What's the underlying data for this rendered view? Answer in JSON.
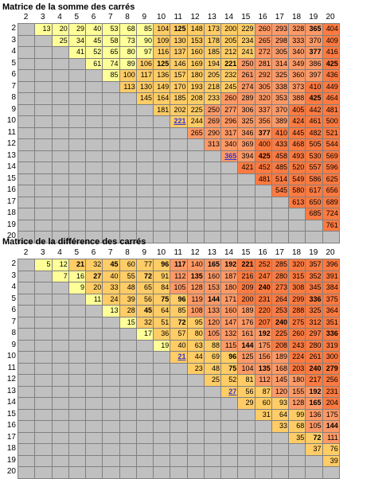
{
  "sum_matrix": {
    "title": "Matrice de la somme des carrés",
    "col_headers": [
      "2",
      "3",
      "4",
      "5",
      "6",
      "7",
      "8",
      "9",
      "10",
      "11",
      "12",
      "13",
      "14",
      "15",
      "16",
      "17",
      "18",
      "19",
      "20"
    ],
    "row_headers": [
      "2",
      "3",
      "4",
      "5",
      "6",
      "7",
      "8",
      "9",
      "10",
      "11",
      "12",
      "13",
      "14",
      "15",
      "16",
      "17",
      "18",
      "19",
      "20"
    ],
    "rows": [
      [
        "",
        "13",
        "20",
        "29",
        "40",
        "53",
        "68",
        "85",
        "104",
        "125",
        "148",
        "173",
        "200",
        "229",
        "260",
        "293",
        "328",
        "365",
        "404"
      ],
      [
        "",
        "",
        "25",
        "34",
        "45",
        "58",
        "73",
        "90",
        "109",
        "130",
        "153",
        "178",
        "205",
        "234",
        "265",
        "298",
        "333",
        "370",
        "409"
      ],
      [
        "",
        "",
        "",
        "41",
        "52",
        "65",
        "80",
        "97",
        "116",
        "137",
        "160",
        "185",
        "212",
        "241",
        "272",
        "305",
        "340",
        "377",
        "416"
      ],
      [
        "",
        "",
        "",
        "",
        "61",
        "74",
        "89",
        "106",
        "125",
        "146",
        "169",
        "194",
        "221",
        "250",
        "281",
        "314",
        "349",
        "386",
        "425"
      ],
      [
        "",
        "",
        "",
        "",
        "",
        "85",
        "100",
        "117",
        "136",
        "157",
        "180",
        "205",
        "232",
        "261",
        "292",
        "325",
        "360",
        "397",
        "436"
      ],
      [
        "",
        "",
        "",
        "",
        "",
        "",
        "113",
        "130",
        "149",
        "170",
        "193",
        "218",
        "245",
        "274",
        "305",
        "338",
        "373",
        "410",
        "449"
      ],
      [
        "",
        "",
        "",
        "",
        "",
        "",
        "",
        "145",
        "164",
        "185",
        "208",
        "233",
        "260",
        "289",
        "320",
        "353",
        "388",
        "425",
        "464"
      ],
      [
        "",
        "",
        "",
        "",
        "",
        "",
        "",
        "",
        "181",
        "202",
        "225",
        "250",
        "277",
        "306",
        "337",
        "370",
        "405",
        "442",
        "481"
      ],
      [
        "",
        "",
        "",
        "",
        "",
        "",
        "",
        "",
        "",
        "221",
        "244",
        "269",
        "296",
        "325",
        "356",
        "389",
        "424",
        "461",
        "500"
      ],
      [
        "",
        "",
        "",
        "",
        "",
        "",
        "",
        "",
        "",
        "",
        "265",
        "290",
        "317",
        "346",
        "377",
        "410",
        "445",
        "482",
        "521"
      ],
      [
        "",
        "",
        "",
        "",
        "",
        "",
        "",
        "",
        "",
        "",
        "",
        "313",
        "340",
        "369",
        "400",
        "433",
        "468",
        "505",
        "544"
      ],
      [
        "",
        "",
        "",
        "",
        "",
        "",
        "",
        "",
        "",
        "",
        "",
        "",
        "365",
        "394",
        "425",
        "458",
        "493",
        "530",
        "569"
      ],
      [
        "",
        "",
        "",
        "",
        "",
        "",
        "",
        "",
        "",
        "",
        "",
        "",
        "",
        "421",
        "452",
        "485",
        "520",
        "557",
        "596"
      ],
      [
        "",
        "",
        "",
        "",
        "",
        "",
        "",
        "",
        "",
        "",
        "",
        "",
        "",
        "",
        "481",
        "514",
        "549",
        "586",
        "625"
      ],
      [
        "",
        "",
        "",
        "",
        "",
        "",
        "",
        "",
        "",
        "",
        "",
        "",
        "",
        "",
        "",
        "545",
        "580",
        "617",
        "656"
      ],
      [
        "",
        "",
        "",
        "",
        "",
        "",
        "",
        "",
        "",
        "",
        "",
        "",
        "",
        "",
        "",
        "",
        "613",
        "650",
        "689"
      ],
      [
        "",
        "",
        "",
        "",
        "",
        "",
        "",
        "",
        "",
        "",
        "",
        "",
        "",
        "",
        "",
        "",
        "",
        "685",
        "724"
      ],
      [
        "",
        "",
        "",
        "",
        "",
        "",
        "",
        "",
        "",
        "",
        "",
        "",
        "",
        "",
        "",
        "",
        "",
        "",
        "761"
      ],
      [
        "",
        "",
        "",
        "",
        "",
        "",
        "",
        "",
        "",
        "",
        "",
        "",
        "",
        "",
        "",
        "",
        "",
        "",
        ""
      ]
    ]
  },
  "diff_matrix": {
    "title": "Matrice de la différence des carrés",
    "col_headers": [
      "2",
      "3",
      "4",
      "5",
      "6",
      "7",
      "8",
      "9",
      "10",
      "11",
      "12",
      "13",
      "14",
      "15",
      "16",
      "17",
      "18",
      "19",
      "20"
    ],
    "row_headers": [
      "2",
      "3",
      "4",
      "5",
      "6",
      "7",
      "8",
      "9",
      "10",
      "11",
      "12",
      "13",
      "14",
      "15",
      "16",
      "17",
      "18",
      "19",
      "20"
    ],
    "rows": [
      [
        "",
        "5",
        "12",
        "21",
        "32",
        "45",
        "60",
        "77",
        "96",
        "117",
        "140",
        "165",
        "192",
        "221",
        "252",
        "285",
        "320",
        "357",
        "396"
      ],
      [
        "",
        "",
        "7",
        "16",
        "27",
        "40",
        "55",
        "72",
        "91",
        "112",
        "135",
        "160",
        "187",
        "216",
        "247",
        "280",
        "315",
        "352",
        "391"
      ],
      [
        "",
        "",
        "",
        "9",
        "20",
        "33",
        "48",
        "65",
        "84",
        "105",
        "128",
        "153",
        "180",
        "209",
        "240",
        "273",
        "308",
        "345",
        "384"
      ],
      [
        "",
        "",
        "",
        "",
        "11",
        "24",
        "39",
        "56",
        "75",
        "96",
        "119",
        "144",
        "171",
        "200",
        "231",
        "264",
        "299",
        "336",
        "375"
      ],
      [
        "",
        "",
        "",
        "",
        "",
        "13",
        "28",
        "45",
        "64",
        "85",
        "108",
        "133",
        "160",
        "189",
        "220",
        "253",
        "288",
        "325",
        "364"
      ],
      [
        "",
        "",
        "",
        "",
        "",
        "",
        "15",
        "32",
        "51",
        "72",
        "95",
        "120",
        "147",
        "176",
        "207",
        "240",
        "275",
        "312",
        "351"
      ],
      [
        "",
        "",
        "",
        "",
        "",
        "",
        "",
        "17",
        "36",
        "57",
        "80",
        "105",
        "132",
        "161",
        "192",
        "225",
        "260",
        "297",
        "336"
      ],
      [
        "",
        "",
        "",
        "",
        "",
        "",
        "",
        "",
        "19",
        "40",
        "63",
        "88",
        "115",
        "144",
        "175",
        "208",
        "243",
        "280",
        "319"
      ],
      [
        "",
        "",
        "",
        "",
        "",
        "",
        "",
        "",
        "",
        "21",
        "44",
        "69",
        "96",
        "125",
        "156",
        "189",
        "224",
        "261",
        "300"
      ],
      [
        "",
        "",
        "",
        "",
        "",
        "",
        "",
        "",
        "",
        "",
        "23",
        "48",
        "75",
        "104",
        "135",
        "168",
        "203",
        "240",
        "279"
      ],
      [
        "",
        "",
        "",
        "",
        "",
        "",
        "",
        "",
        "",
        "",
        "",
        "25",
        "52",
        "81",
        "112",
        "145",
        "180",
        "217",
        "256"
      ],
      [
        "",
        "",
        "",
        "",
        "",
        "",
        "",
        "",
        "",
        "",
        "",
        "",
        "27",
        "56",
        "87",
        "120",
        "155",
        "192",
        "231"
      ],
      [
        "",
        "",
        "",
        "",
        "",
        "",
        "",
        "",
        "",
        "",
        "",
        "",
        "",
        "29",
        "60",
        "93",
        "128",
        "165",
        "204"
      ],
      [
        "",
        "",
        "",
        "",
        "",
        "",
        "",
        "",
        "",
        "",
        "",
        "",
        "",
        "",
        "31",
        "64",
        "99",
        "136",
        "175"
      ],
      [
        "",
        "",
        "",
        "",
        "",
        "",
        "",
        "",
        "",
        "",
        "",
        "",
        "",
        "",
        "",
        "33",
        "68",
        "105",
        "144"
      ],
      [
        "",
        "",
        "",
        "",
        "",
        "",
        "",
        "",
        "",
        "",
        "",
        "",
        "",
        "",
        "",
        "",
        "35",
        "72",
        "111"
      ],
      [
        "",
        "",
        "",
        "",
        "",
        "",
        "",
        "",
        "",
        "",
        "",
        "",
        "",
        "",
        "",
        "",
        "",
        "37",
        "76"
      ],
      [
        "",
        "",
        "",
        "",
        "",
        "",
        "",
        "",
        "",
        "",
        "",
        "",
        "",
        "",
        "",
        "",
        "",
        "",
        "39"
      ],
      [
        "",
        "",
        "",
        "",
        "",
        "",
        "",
        "",
        "",
        "",
        "",
        "",
        "",
        "",
        "",
        "",
        "",
        "",
        ""
      ]
    ]
  },
  "colors": {
    "gray": "#c0c0c0",
    "yellow": "#ffff99",
    "light_orange": "#ffcc66",
    "orange": "#ff9966",
    "dark_orange": "#ff7a40",
    "link_blue": "#3333cc"
  },
  "sum_bold": [
    "125",
    "221",
    "365",
    "377",
    "425"
  ],
  "sum_links": [
    "125",
    "221",
    "365",
    "377"
  ],
  "diff_bold": [
    "21",
    "27",
    "45",
    "72",
    "75",
    "96",
    "117",
    "135",
    "144",
    "165",
    "192",
    "221",
    "240",
    "279",
    "336"
  ],
  "diff_links": [
    "21",
    "27",
    "75",
    "135"
  ]
}
